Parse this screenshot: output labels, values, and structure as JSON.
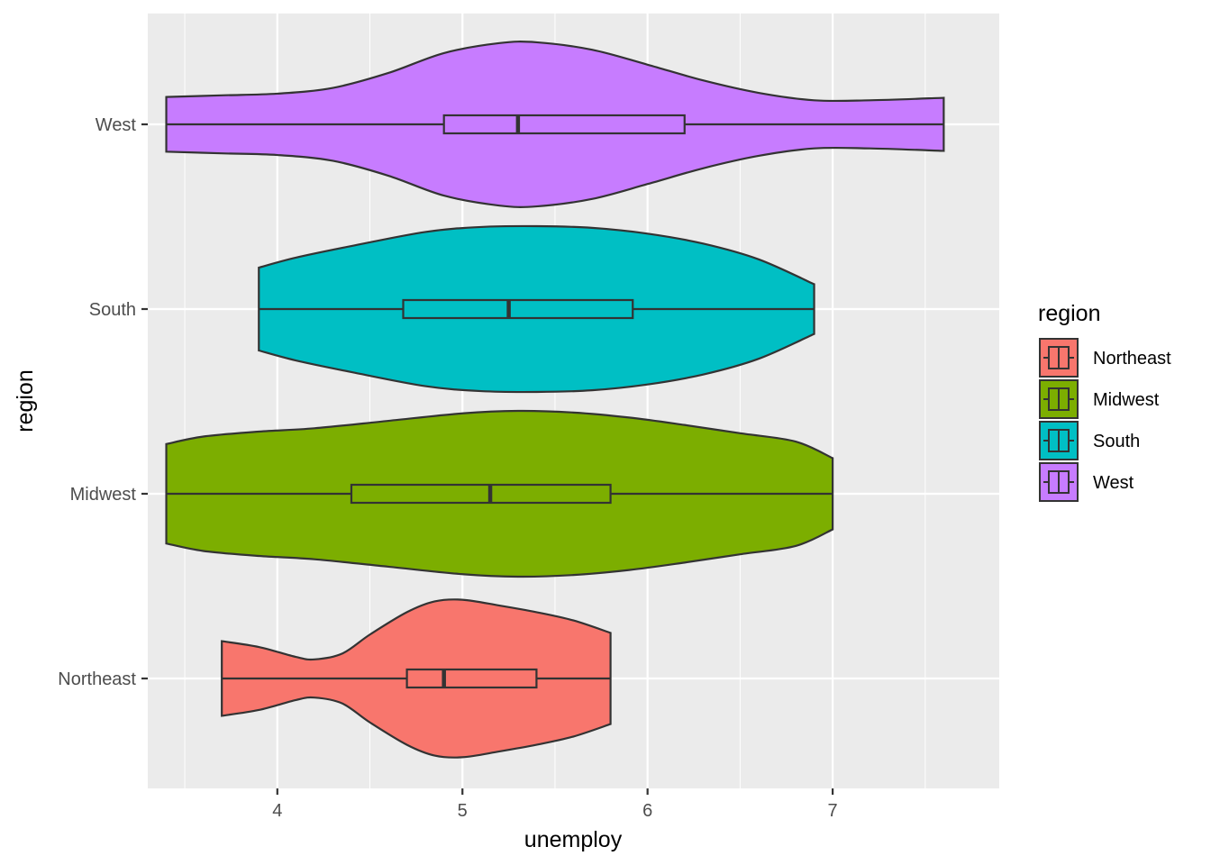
{
  "chart_data": {
    "type": "violin",
    "xlabel": "unemploy",
    "ylabel": "region",
    "xlim": [
      3.3,
      7.9
    ],
    "x_ticks": [
      4,
      5,
      6,
      7
    ],
    "grid": true,
    "legend_placement": "right",
    "categories": [
      "Northeast",
      "Midwest",
      "South",
      "West"
    ],
    "legend": {
      "title": "region",
      "entries": [
        "Northeast",
        "Midwest",
        "South",
        "West"
      ]
    },
    "series": [
      {
        "name": "Northeast",
        "color": "#F8766D",
        "min": 3.7,
        "q1": 4.7,
        "median": 4.9,
        "q3": 5.4,
        "max": 5.8,
        "density": [
          [
            3.7,
            0.45
          ],
          [
            3.9,
            0.38
          ],
          [
            4.1,
            0.26
          ],
          [
            4.2,
            0.23
          ],
          [
            4.35,
            0.3
          ],
          [
            4.5,
            0.53
          ],
          [
            4.7,
            0.8
          ],
          [
            4.85,
            0.93
          ],
          [
            5.0,
            0.95
          ],
          [
            5.2,
            0.88
          ],
          [
            5.4,
            0.8
          ],
          [
            5.6,
            0.7
          ],
          [
            5.8,
            0.55
          ]
        ]
      },
      {
        "name": "Midwest",
        "color": "#7CAE00",
        "min": 3.4,
        "q1": 4.4,
        "median": 5.15,
        "q3": 5.8,
        "max": 7.0,
        "density": [
          [
            3.4,
            0.6
          ],
          [
            3.6,
            0.69
          ],
          [
            3.9,
            0.75
          ],
          [
            4.2,
            0.79
          ],
          [
            4.6,
            0.88
          ],
          [
            5.0,
            0.97
          ],
          [
            5.3,
            1.0
          ],
          [
            5.6,
            0.98
          ],
          [
            5.9,
            0.92
          ],
          [
            6.2,
            0.83
          ],
          [
            6.5,
            0.73
          ],
          [
            6.8,
            0.63
          ],
          [
            7.0,
            0.43
          ]
        ]
      },
      {
        "name": "South",
        "color": "#00BFC4",
        "min": 3.9,
        "q1": 4.68,
        "median": 5.25,
        "q3": 5.92,
        "max": 6.9,
        "density": [
          [
            3.9,
            0.5
          ],
          [
            4.1,
            0.62
          ],
          [
            4.4,
            0.76
          ],
          [
            4.8,
            0.93
          ],
          [
            5.1,
            0.99
          ],
          [
            5.4,
            1.0
          ],
          [
            5.7,
            0.98
          ],
          [
            6.0,
            0.91
          ],
          [
            6.3,
            0.79
          ],
          [
            6.6,
            0.6
          ],
          [
            6.9,
            0.3
          ]
        ]
      },
      {
        "name": "West",
        "color": "#C77CFF",
        "min": 3.4,
        "q1": 4.9,
        "median": 5.3,
        "q3": 6.2,
        "max": 7.6,
        "density": [
          [
            3.4,
            0.33
          ],
          [
            3.7,
            0.35
          ],
          [
            4.0,
            0.37
          ],
          [
            4.3,
            0.44
          ],
          [
            4.6,
            0.62
          ],
          [
            4.9,
            0.86
          ],
          [
            5.2,
            0.98
          ],
          [
            5.4,
            0.99
          ],
          [
            5.7,
            0.9
          ],
          [
            6.0,
            0.72
          ],
          [
            6.3,
            0.53
          ],
          [
            6.6,
            0.38
          ],
          [
            6.9,
            0.29
          ],
          [
            7.2,
            0.29
          ],
          [
            7.6,
            0.32
          ]
        ]
      }
    ]
  }
}
